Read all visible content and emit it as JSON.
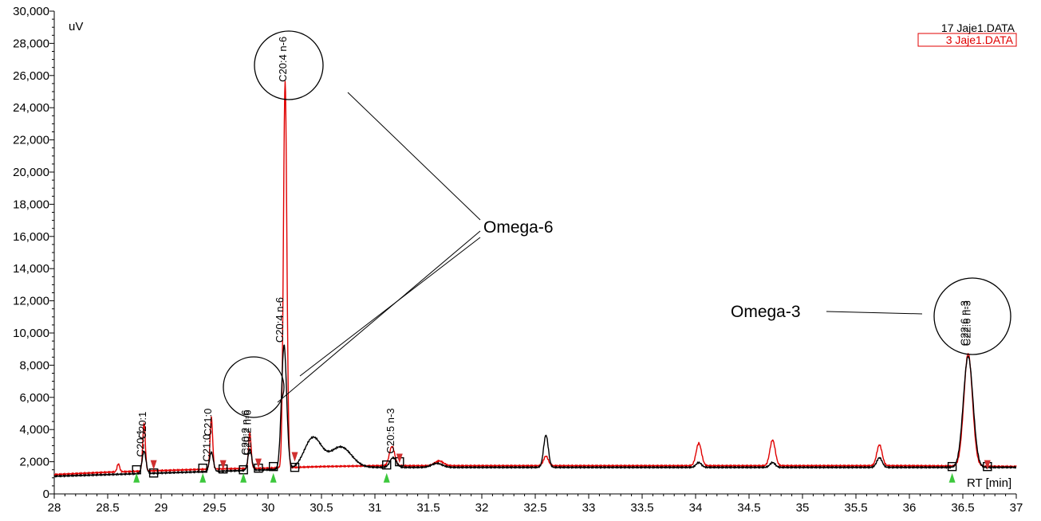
{
  "chart_data": {
    "type": "line",
    "ylabel": "uV",
    "xlabel": "RT [min]",
    "xlim": [
      28,
      37
    ],
    "ylim": [
      0,
      30000
    ],
    "x_ticks": [
      28,
      28.5,
      29,
      29.5,
      30,
      30.5,
      31,
      31.5,
      32,
      32.5,
      33,
      33.5,
      34,
      34.5,
      35,
      35.5,
      36,
      36.5,
      37
    ],
    "x_tick_labels": [
      "28",
      "28.5",
      "29",
      "29.5",
      "30",
      "30.5",
      "31",
      "31.5",
      "32",
      "32.5",
      "33",
      "33.5",
      "34",
      "34.5",
      "35",
      "35.5",
      "36",
      "36.5",
      "37"
    ],
    "y_ticks": [
      0,
      2000,
      4000,
      6000,
      8000,
      10000,
      12000,
      14000,
      16000,
      18000,
      20000,
      22000,
      24000,
      26000,
      28000,
      30000
    ],
    "y_tick_labels": [
      "0",
      "2,000",
      "4,000",
      "6,000",
      "8,000",
      "10,000",
      "12,000",
      "14,000",
      "16,000",
      "18,000",
      "20,000",
      "22,000",
      "24,000",
      "26,000",
      "28,000",
      "30,000"
    ],
    "legend_position": "top-right",
    "legend": [
      {
        "label": "17 Jaje1.DATA",
        "color": "#000000",
        "boxed": false
      },
      {
        "label": "3 Jaje1.DATA",
        "color": "#e00000",
        "boxed": true
      }
    ],
    "series": [
      {
        "color": "#000000",
        "baseline": [
          [
            28,
            1100
          ],
          [
            28.5,
            1200
          ],
          [
            29,
            1300
          ],
          [
            29.5,
            1400
          ],
          [
            30,
            1500
          ],
          [
            30.5,
            1600
          ],
          [
            31,
            1650
          ],
          [
            32,
            1650
          ],
          [
            33,
            1650
          ],
          [
            34,
            1650
          ],
          [
            35,
            1650
          ],
          [
            36,
            1650
          ],
          [
            37,
            1650
          ]
        ],
        "peaks": [
          {
            "x": 28.84,
            "h": 1400,
            "w": 0.018
          },
          {
            "x": 29.47,
            "h": 1200,
            "w": 0.018
          },
          {
            "x": 29.83,
            "h": 1300,
            "w": 0.018
          },
          {
            "x": 30.15,
            "h": 7700,
            "w": 0.024
          },
          {
            "x": 30.42,
            "h": 1900,
            "w": 0.08
          },
          {
            "x": 30.68,
            "h": 1300,
            "w": 0.1
          },
          {
            "x": 31.17,
            "h": 600,
            "w": 0.03
          },
          {
            "x": 31.58,
            "h": 250,
            "w": 0.05
          },
          {
            "x": 32.6,
            "h": 2000,
            "w": 0.022
          },
          {
            "x": 34.03,
            "h": 300,
            "w": 0.025
          },
          {
            "x": 34.72,
            "h": 300,
            "w": 0.025
          },
          {
            "x": 35.72,
            "h": 600,
            "w": 0.025
          },
          {
            "x": 36.55,
            "h": 6900,
            "w": 0.045
          }
        ]
      },
      {
        "color": "#e00000",
        "baseline": [
          [
            28,
            1200
          ],
          [
            28.5,
            1350
          ],
          [
            29,
            1450
          ],
          [
            29.5,
            1550
          ],
          [
            30,
            1600
          ],
          [
            30.5,
            1700
          ],
          [
            31,
            1750
          ],
          [
            32,
            1750
          ],
          [
            33,
            1750
          ],
          [
            34,
            1750
          ],
          [
            35,
            1750
          ],
          [
            36,
            1750
          ],
          [
            37,
            1700
          ]
        ],
        "peaks": [
          {
            "x": 28.6,
            "h": 500,
            "w": 0.012
          },
          {
            "x": 28.84,
            "h": 3000,
            "w": 0.012
          },
          {
            "x": 29.47,
            "h": 3200,
            "w": 0.012
          },
          {
            "x": 29.83,
            "h": 2200,
            "w": 0.012
          },
          {
            "x": 30.16,
            "h": 24000,
            "w": 0.016
          },
          {
            "x": 31.16,
            "h": 1200,
            "w": 0.025
          },
          {
            "x": 31.6,
            "h": 300,
            "w": 0.04
          },
          {
            "x": 32.6,
            "h": 600,
            "w": 0.022
          },
          {
            "x": 34.03,
            "h": 1400,
            "w": 0.025
          },
          {
            "x": 34.72,
            "h": 1600,
            "w": 0.025
          },
          {
            "x": 35.72,
            "h": 1300,
            "w": 0.025
          },
          {
            "x": 36.55,
            "h": 7000,
            "w": 0.04
          }
        ]
      }
    ],
    "peak_labels": [
      {
        "text": "C20:1",
        "x": 28.86,
        "y": 3400
      },
      {
        "text": "C20:1",
        "x": 28.84,
        "y": 2300
      },
      {
        "text": "C21:0",
        "x": 29.47,
        "y": 3600
      },
      {
        "text": "C21:0",
        "x": 29.46,
        "y": 2000
      },
      {
        "text": "C20:2 n-6",
        "x": 29.82,
        "y": 2400
      },
      {
        "text": "C20:2 n-6",
        "x": 29.84,
        "y": 2400
      },
      {
        "text": "C20:4 n-6",
        "x": 30.17,
        "y": 25600
      },
      {
        "text": "C20:4 n-6",
        "x": 30.14,
        "y": 9400
      },
      {
        "text": "C20:5 n-3",
        "x": 31.18,
        "y": 2500
      },
      {
        "text": "C22:6 n-3",
        "x": 36.57,
        "y": 9200
      },
      {
        "text": "C22:6 n-3",
        "x": 36.55,
        "y": 9200
      }
    ],
    "annotations": [
      {
        "text": "Omega-6"
      },
      {
        "text": "Omega-3"
      }
    ]
  }
}
